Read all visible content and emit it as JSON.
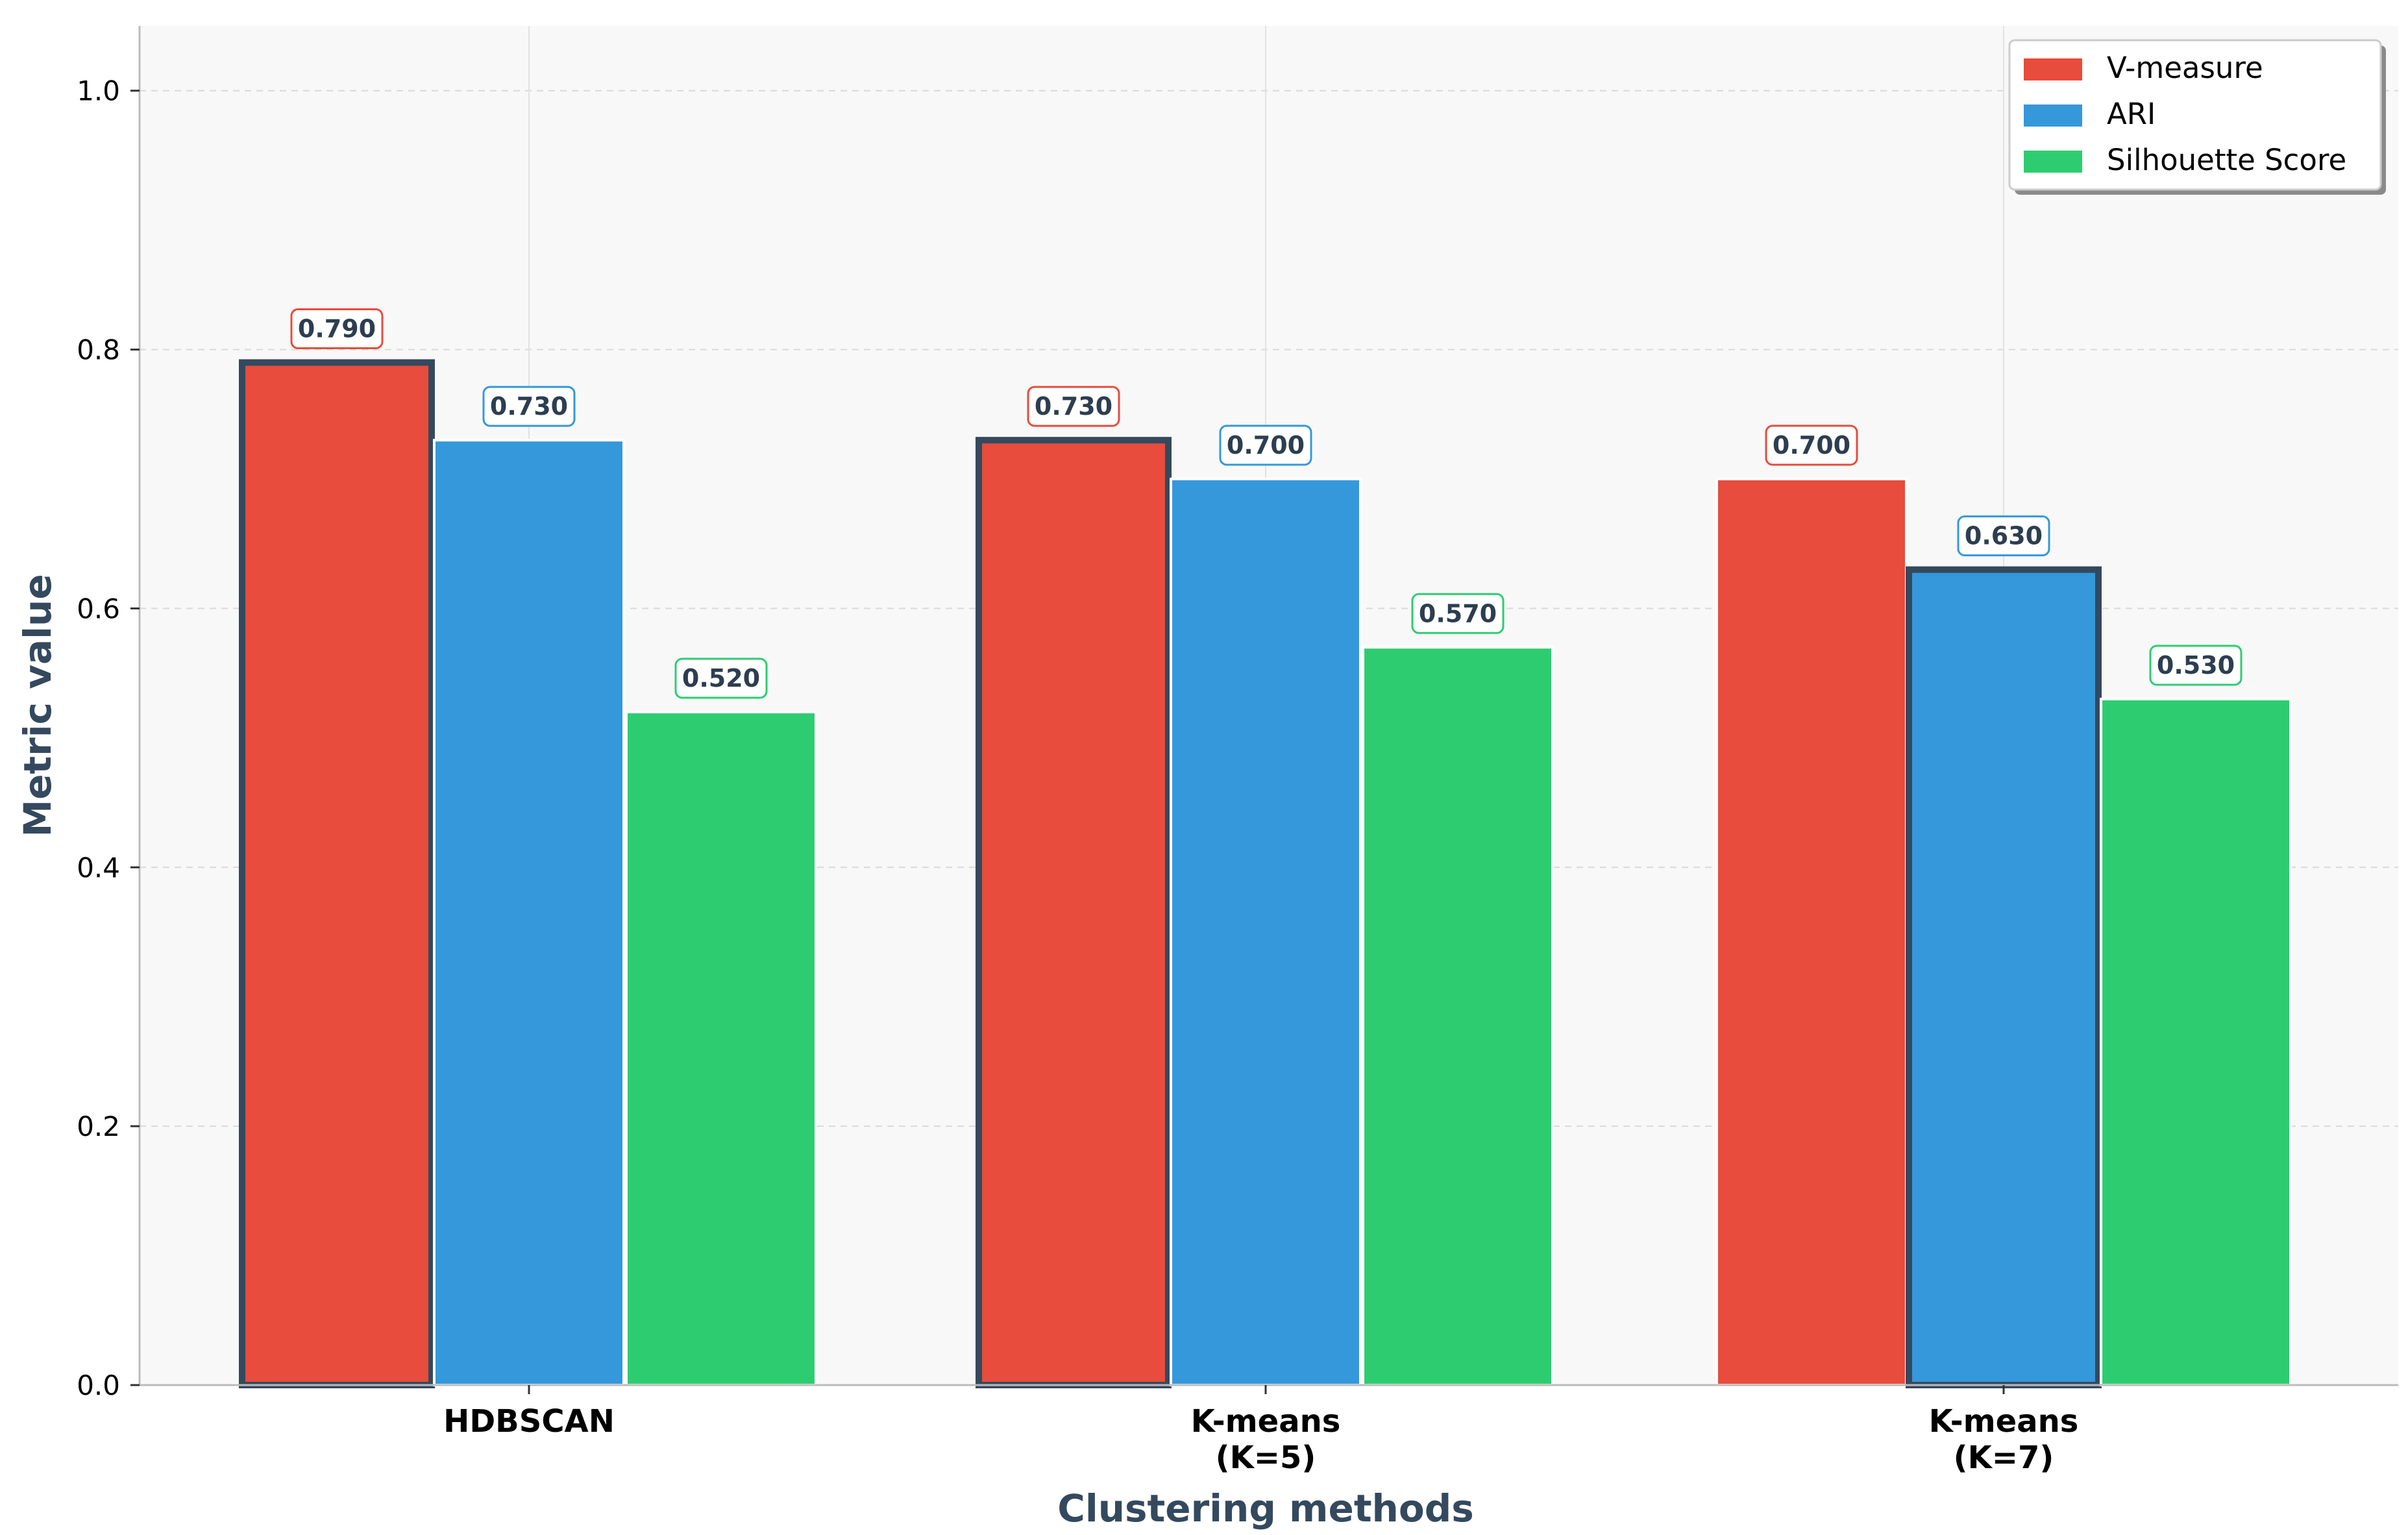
{
  "chart_data": {
    "type": "bar",
    "title": "",
    "xlabel": "Clustering methods",
    "ylabel": "Metric value",
    "ylim": [
      0,
      1.05
    ],
    "yticks": [
      0.0,
      0.2,
      0.4,
      0.6,
      0.8,
      1.0
    ],
    "ytick_labels": [
      "0.0",
      "0.2",
      "0.4",
      "0.6",
      "0.8",
      "1.0"
    ],
    "grid": true,
    "legend_position": "top-right",
    "categories": [
      [
        "HDBSCAN"
      ],
      [
        "K-means",
        "(K=5)"
      ],
      [
        "K-means",
        "(K=7)"
      ]
    ],
    "series": [
      {
        "name": "V-measure",
        "color": "#e74c3c",
        "values": [
          0.79,
          0.73,
          0.7
        ],
        "labels": [
          "0.790",
          "0.730",
          "0.700"
        ]
      },
      {
        "name": "ARI",
        "color": "#3498db",
        "values": [
          0.73,
          0.7,
          0.63
        ],
        "labels": [
          "0.730",
          "0.700",
          "0.630"
        ]
      },
      {
        "name": "Silhouette Score",
        "color": "#2ecc71",
        "values": [
          0.52,
          0.57,
          0.53
        ],
        "labels": [
          "0.520",
          "0.570",
          "0.530"
        ]
      }
    ],
    "highlighted": [
      [
        0,
        0
      ],
      [
        1,
        0
      ],
      [
        2,
        1
      ]
    ],
    "highlight_color": "#34495e",
    "label_text_color": "#2c3e50",
    "axis_label_color": "#34495e"
  }
}
